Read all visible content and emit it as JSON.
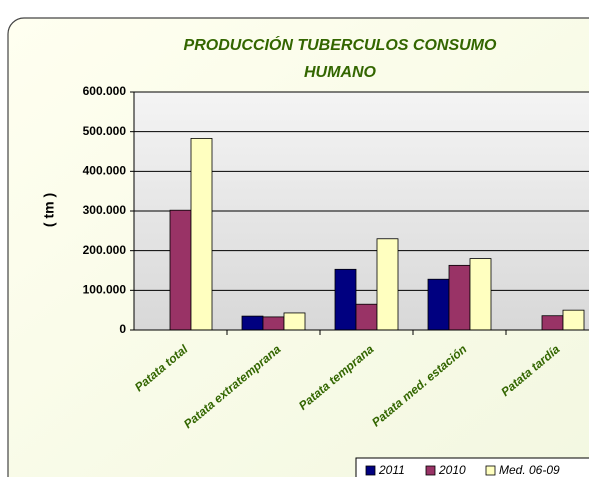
{
  "chart_data": {
    "type": "bar",
    "title": [
      "PRODUCCIÓN TUBERCULOS CONSUMO",
      "HUMANO"
    ],
    "y_label": "( tm )",
    "categories": [
      "Patata total",
      "Patata extratemprana",
      "Patata temprana",
      "Patata med. estación",
      "Patata tardía"
    ],
    "series": [
      {
        "name": "2011",
        "color": "#000080",
        "values": [
          null,
          35000,
          153000,
          128000,
          null
        ]
      },
      {
        "name": "2010",
        "color": "#993366",
        "values": [
          302000,
          33000,
          65000,
          163000,
          36000
        ]
      },
      {
        "name": "Med. 06-09",
        "color": "#FFFFC0",
        "values": [
          483000,
          43000,
          230000,
          180000,
          50000
        ]
      }
    ],
    "ylim": [
      0,
      600000
    ],
    "yticks": [
      0,
      {
        "value": 100000,
        "label": "100.000"
      },
      {
        "value": 200000,
        "label": "200.000"
      },
      {
        "value": 300000,
        "label": "300.000"
      },
      {
        "value": 400000,
        "label": "400.000"
      },
      {
        "value": 500000,
        "label": "500.000"
      },
      {
        "value": 600000,
        "label": "600.000"
      }
    ],
    "grid": true,
    "legend": "bottom-right"
  }
}
